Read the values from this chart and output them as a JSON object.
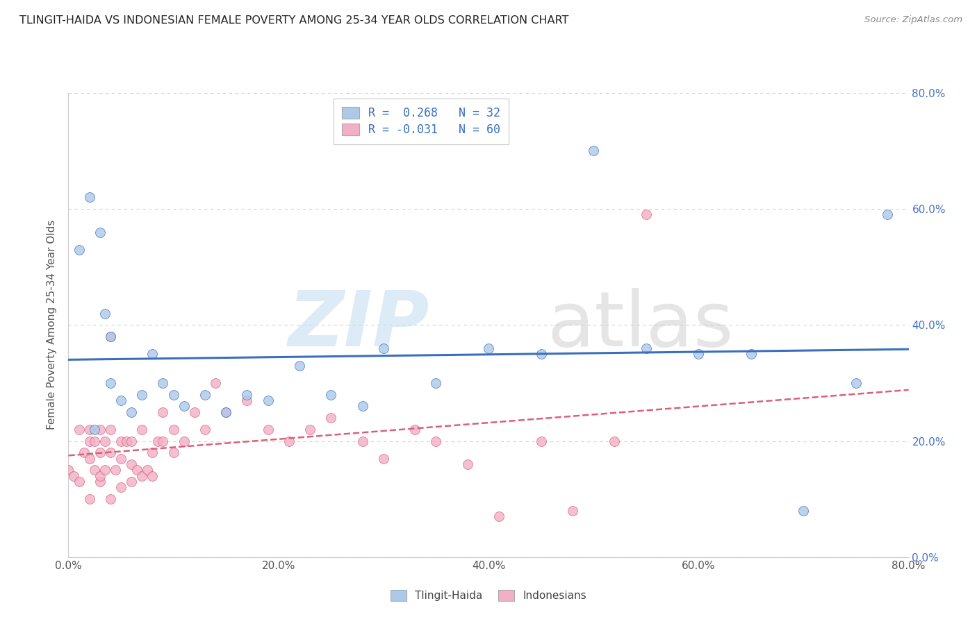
{
  "title": "TLINGIT-HAIDA VS INDONESIAN FEMALE POVERTY AMONG 25-34 YEAR OLDS CORRELATION CHART",
  "source": "Source: ZipAtlas.com",
  "ylabel": "Female Poverty Among 25-34 Year Olds",
  "legend_labels": [
    "Tlingit-Haida",
    "Indonesians"
  ],
  "r_tlingit": 0.268,
  "n_tlingit": 32,
  "r_indonesian": -0.031,
  "n_indonesian": 60,
  "tlingit_color": "#adc9e8",
  "indonesian_color": "#f2afc5",
  "tlingit_line_color": "#3a6fc0",
  "indonesian_line_color": "#d9607a",
  "tlingit_x": [
    0.01,
    0.02,
    0.025,
    0.03,
    0.035,
    0.04,
    0.04,
    0.05,
    0.06,
    0.07,
    0.08,
    0.09,
    0.1,
    0.11,
    0.13,
    0.15,
    0.17,
    0.19,
    0.22,
    0.25,
    0.28,
    0.3,
    0.35,
    0.4,
    0.45,
    0.5,
    0.55,
    0.6,
    0.65,
    0.7,
    0.75,
    0.78
  ],
  "tlingit_y": [
    0.53,
    0.62,
    0.22,
    0.56,
    0.42,
    0.38,
    0.3,
    0.27,
    0.25,
    0.28,
    0.35,
    0.3,
    0.28,
    0.26,
    0.28,
    0.25,
    0.28,
    0.27,
    0.33,
    0.28,
    0.26,
    0.36,
    0.3,
    0.36,
    0.35,
    0.7,
    0.36,
    0.35,
    0.35,
    0.08,
    0.3,
    0.59
  ],
  "indonesian_x": [
    0.0,
    0.005,
    0.01,
    0.01,
    0.015,
    0.02,
    0.02,
    0.02,
    0.02,
    0.025,
    0.025,
    0.03,
    0.03,
    0.03,
    0.03,
    0.035,
    0.035,
    0.04,
    0.04,
    0.04,
    0.04,
    0.045,
    0.05,
    0.05,
    0.05,
    0.055,
    0.06,
    0.06,
    0.06,
    0.065,
    0.07,
    0.07,
    0.075,
    0.08,
    0.08,
    0.085,
    0.09,
    0.09,
    0.1,
    0.1,
    0.11,
    0.12,
    0.13,
    0.14,
    0.15,
    0.17,
    0.19,
    0.21,
    0.23,
    0.25,
    0.28,
    0.3,
    0.33,
    0.35,
    0.38,
    0.41,
    0.45,
    0.48,
    0.52,
    0.55
  ],
  "indonesian_y": [
    0.15,
    0.14,
    0.22,
    0.13,
    0.18,
    0.1,
    0.17,
    0.2,
    0.22,
    0.15,
    0.2,
    0.13,
    0.18,
    0.22,
    0.14,
    0.2,
    0.15,
    0.22,
    0.18,
    0.38,
    0.1,
    0.15,
    0.12,
    0.17,
    0.2,
    0.2,
    0.13,
    0.16,
    0.2,
    0.15,
    0.14,
    0.22,
    0.15,
    0.18,
    0.14,
    0.2,
    0.2,
    0.25,
    0.18,
    0.22,
    0.2,
    0.25,
    0.22,
    0.3,
    0.25,
    0.27,
    0.22,
    0.2,
    0.22,
    0.24,
    0.2,
    0.17,
    0.22,
    0.2,
    0.16,
    0.07,
    0.2,
    0.08,
    0.2,
    0.59
  ],
  "xmin": 0.0,
  "xmax": 0.8,
  "ymin": 0.0,
  "ymax": 0.8,
  "ytick_vals": [
    0.0,
    0.2,
    0.4,
    0.6,
    0.8
  ],
  "xtick_vals": [
    0.0,
    0.2,
    0.4,
    0.6,
    0.8
  ],
  "right_ytick_color": "#4472c4",
  "background_color": "#ffffff",
  "grid_color": "#c8c8c8"
}
